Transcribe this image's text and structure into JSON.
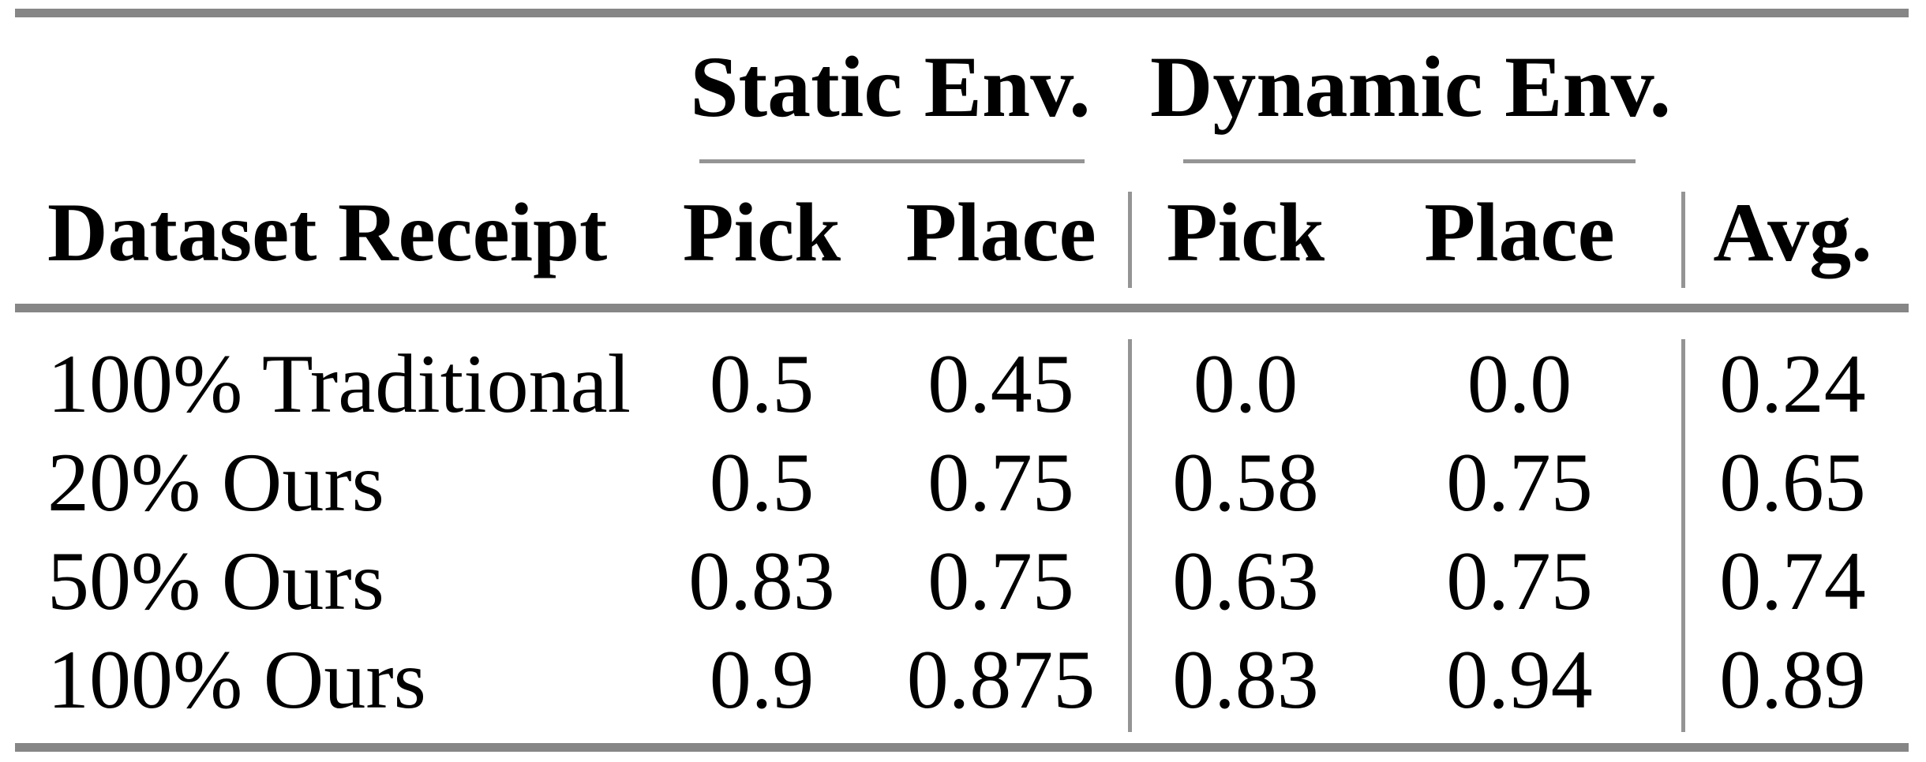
{
  "table": {
    "group_headers": {
      "static": "Static Env.",
      "dynamic": "Dynamic Env."
    },
    "columns": {
      "row_header": "Dataset Receipt",
      "static_pick": "Pick",
      "static_place": "Place",
      "dynamic_pick": "Pick",
      "dynamic_place": "Place",
      "avg": "Avg."
    },
    "rows": [
      {
        "label": "100% Traditional",
        "static_pick": "0.5",
        "static_place": "0.45",
        "dynamic_pick": "0.0",
        "dynamic_place": "0.0",
        "avg": "0.24"
      },
      {
        "label": "20% Ours",
        "static_pick": "0.5",
        "static_place": "0.75",
        "dynamic_pick": "0.58",
        "dynamic_place": "0.75",
        "avg": "0.65"
      },
      {
        "label": "50% Ours",
        "static_pick": "0.83",
        "static_place": "0.75",
        "dynamic_pick": "0.63",
        "dynamic_place": "0.75",
        "avg": "0.74"
      },
      {
        "label": "100% Ours",
        "static_pick": "0.9",
        "static_place": "0.875",
        "dynamic_pick": "0.83",
        "dynamic_place": "0.94",
        "avg": "0.89"
      }
    ],
    "colors": {
      "rule": "#868686",
      "thin_rule": "#949494",
      "text": "#000000",
      "background": "#ffffff"
    }
  },
  "chart_data": {
    "type": "table",
    "title": "",
    "column_groups": [
      "Static Env.",
      "Dynamic Env."
    ],
    "columns": [
      "Dataset Receipt",
      "Static Env. Pick",
      "Static Env. Place",
      "Dynamic Env. Pick",
      "Dynamic Env. Place",
      "Avg."
    ],
    "rows": [
      [
        "100% Traditional",
        0.5,
        0.45,
        0.0,
        0.0,
        0.24
      ],
      [
        "20% Ours",
        0.5,
        0.75,
        0.58,
        0.75,
        0.65
      ],
      [
        "50% Ours",
        0.83,
        0.75,
        0.63,
        0.75,
        0.74
      ],
      [
        "100% Ours",
        0.9,
        0.875,
        0.83,
        0.94,
        0.89
      ]
    ]
  }
}
